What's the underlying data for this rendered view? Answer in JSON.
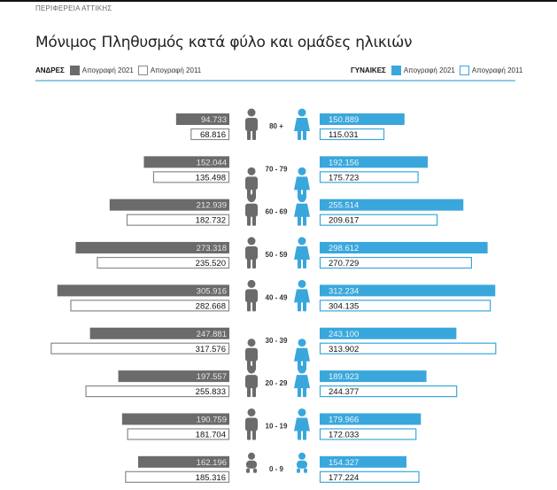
{
  "header": {
    "region": "ΠΕΡΙΦΕΡΕΙΑ ΑΤΤΙΚΗΣ",
    "title": "Μόνιμος Πληθυσμός κατά φύλο και ομάδες ηλικιών"
  },
  "legend": {
    "men": {
      "label": "ΑΝΔΡΕΣ",
      "series_2021": "Απογραφή 2021",
      "series_2011": "Απογραφή 2011"
    },
    "women": {
      "label": "ΓΥΝΑΙΚΕΣ",
      "series_2021": "Απογραφή 2021",
      "series_2011": "Απογραφή 2011"
    }
  },
  "colors": {
    "men_2021": "#6b6b6b",
    "men_2011_border": "#8a8a8a",
    "women_2021": "#3aa7dc",
    "women_2011_border": "#3aa7dc",
    "rule": "#8fcbe3"
  },
  "chart_data": {
    "type": "bar",
    "title": "Μόνιμος Πληθυσμός κατά φύλο και ομάδες ηλικιών",
    "orientation": "horizontal-population-pyramid",
    "categories": [
      "80 +",
      "70 - 79",
      "60 - 69",
      "50 - 59",
      "40 - 49",
      "30 - 39",
      "20 - 29",
      "10 - 19",
      "0 - 9"
    ],
    "series": [
      {
        "name": "ΑΝΔΡΕΣ Απογραφή 2021",
        "side": "left",
        "values": [
          94733,
          152044,
          212939,
          273318,
          305916,
          247881,
          197557,
          190759,
          162196
        ],
        "labels": [
          "94.733",
          "152.044",
          "212.939",
          "273.318",
          "305.916",
          "247.881",
          "197.557",
          "190.759",
          "162.196"
        ]
      },
      {
        "name": "ΑΝΔΡΕΣ Απογραφή 2011",
        "side": "left",
        "values": [
          68816,
          135498,
          182732,
          235520,
          282668,
          317576,
          255833,
          181704,
          185316
        ],
        "labels": [
          "68.816",
          "135.498",
          "182.732",
          "235.520",
          "282.668",
          "317.576",
          "255.833",
          "181.704",
          "185.316"
        ]
      },
      {
        "name": "ΓΥΝΑΙΚΕΣ Απογραφή 2021",
        "side": "right",
        "values": [
          150889,
          192156,
          255514,
          298612,
          312234,
          243100,
          189923,
          179966,
          154327
        ],
        "labels": [
          "150.889",
          "192.156",
          "255.514",
          "298.612",
          "312.234",
          "243.100",
          "189.923",
          "179.966",
          "154.327"
        ]
      },
      {
        "name": "ΓΥΝΑΙΚΕΣ Απογραφή 2011",
        "side": "right",
        "values": [
          115031,
          175723,
          209617,
          270729,
          304135,
          313902,
          244377,
          172033,
          177224
        ],
        "labels": [
          "115.031",
          "175.723",
          "209.617",
          "270.729",
          "304.135",
          "313.902",
          "244.377",
          "172.033",
          "177.224"
        ]
      }
    ],
    "icons_men": [
      "elderly-man-cane-icon",
      "old-man-icon",
      "man-icon",
      "man-tie-icon",
      "man-suit-icon",
      "man-icon",
      "young-man-icon",
      "boy-icon",
      "baby-icon"
    ],
    "icons_women": [
      "elderly-woman-cane-icon",
      "old-woman-icon",
      "woman-icon",
      "woman-dress-icon",
      "woman-briefcase-icon",
      "woman-icon",
      "young-woman-icon",
      "girl-icon",
      "baby-girl-icon"
    ],
    "grid": false,
    "legend_position": "top"
  }
}
